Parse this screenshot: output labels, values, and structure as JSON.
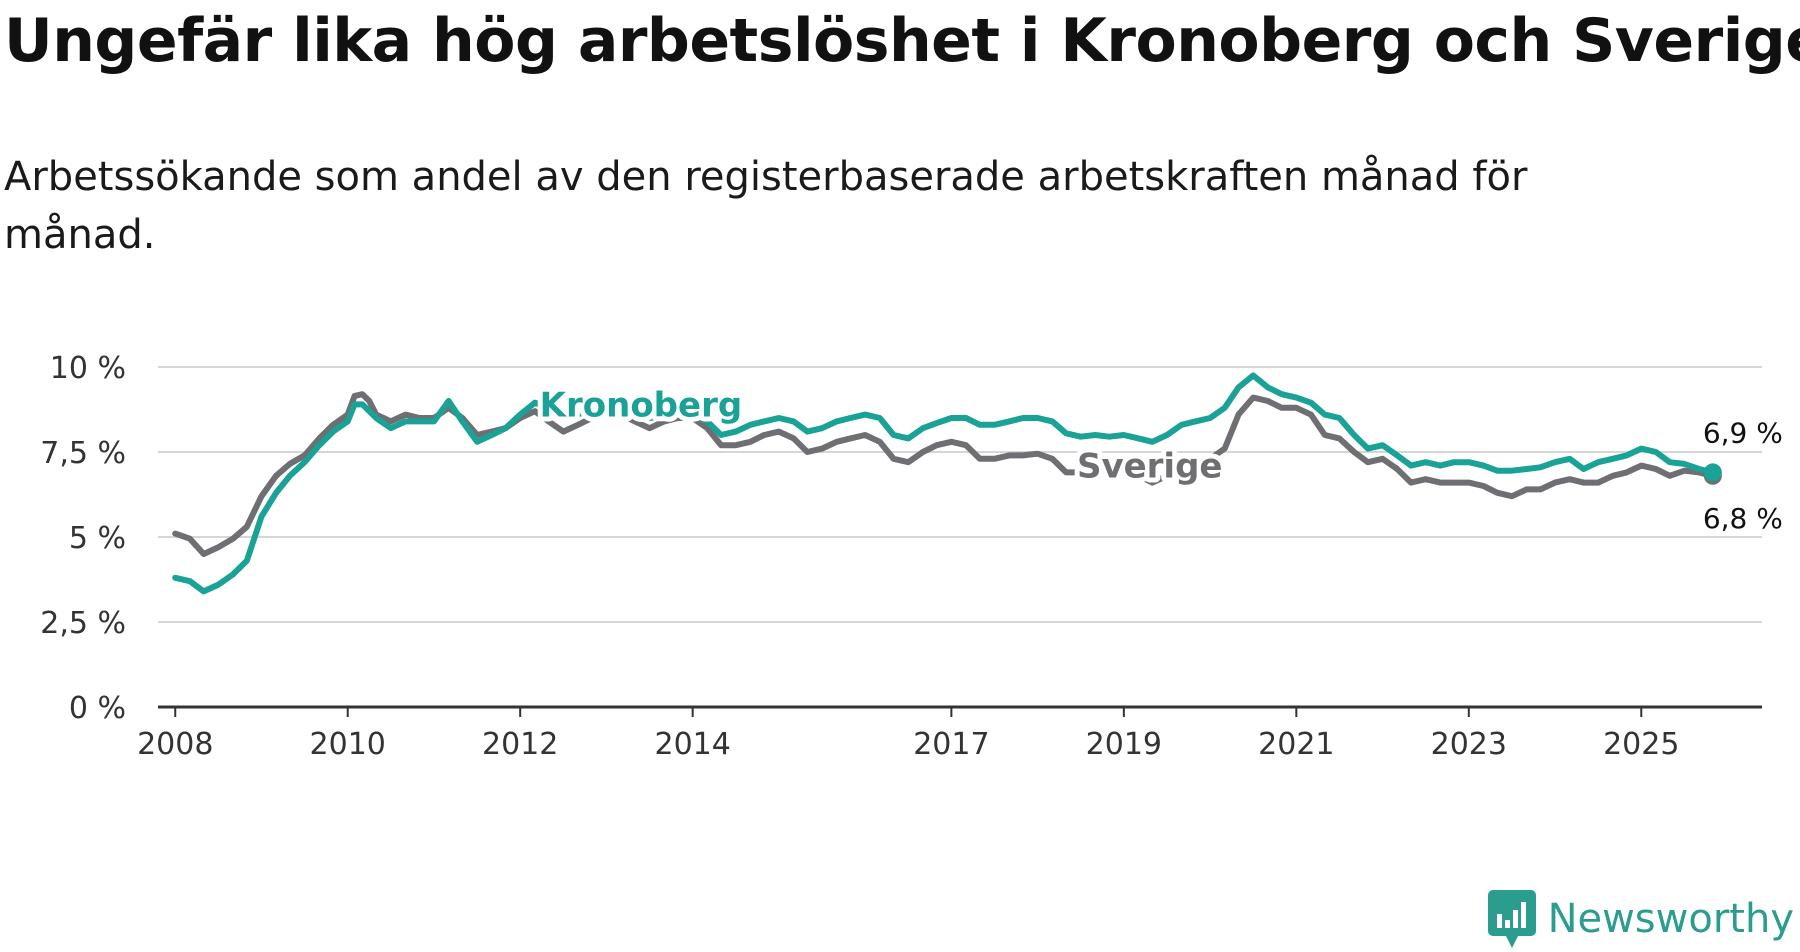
{
  "header": {
    "title": "Ungefär lika hög arbetslöshet i Kronoberg och Sverige",
    "subtitle": "Arbetssökande som andel av den registerbaserade arbetskraften månad för månad."
  },
  "brand": {
    "name": "Newsworthy",
    "icon": "newsworthy-logo-icon",
    "color": "#2a9d8f"
  },
  "chart_data": {
    "type": "line",
    "title": "Ungefär lika hög arbetslöshet i Kronoberg och Sverige",
    "subtitle": "Arbetssökande som andel av den registerbaserade arbetskraften månad för månad.",
    "xlabel": "",
    "ylabel": "",
    "xlim": [
      2007.8,
      2026.4
    ],
    "ylim": [
      0,
      10
    ],
    "grid": true,
    "yticks": [
      {
        "value": 0,
        "label": "0 %"
      },
      {
        "value": 2.5,
        "label": "2,5 %"
      },
      {
        "value": 5,
        "label": "5 %"
      },
      {
        "value": 7.5,
        "label": "7,5 %"
      },
      {
        "value": 10,
        "label": "10 %"
      }
    ],
    "xticks": [
      {
        "value": 2008,
        "label": "2008"
      },
      {
        "value": 2010,
        "label": "2010"
      },
      {
        "value": 2012,
        "label": "2012"
      },
      {
        "value": 2014,
        "label": "2014"
      },
      {
        "value": 2017,
        "label": "2017"
      },
      {
        "value": 2019,
        "label": "2019"
      },
      {
        "value": 2021,
        "label": "2021"
      },
      {
        "value": 2023,
        "label": "2023"
      },
      {
        "value": 2025,
        "label": "2025"
      }
    ],
    "series": [
      {
        "name": "Sverige",
        "color": "#6e6e73",
        "end_label": "6,8 %",
        "points": [
          [
            2008,
            5.1
          ],
          [
            2008.17,
            4.95
          ],
          [
            2008.33,
            4.5
          ],
          [
            2008.5,
            4.7
          ],
          [
            2008.67,
            4.95
          ],
          [
            2008.83,
            5.3
          ],
          [
            2009,
            6.2
          ],
          [
            2009.17,
            6.8
          ],
          [
            2009.33,
            7.15
          ],
          [
            2009.5,
            7.4
          ],
          [
            2009.67,
            7.9
          ],
          [
            2009.83,
            8.3
          ],
          [
            2010,
            8.6
          ],
          [
            2010.08,
            9.15
          ],
          [
            2010.17,
            9.2
          ],
          [
            2010.25,
            9.0
          ],
          [
            2010.33,
            8.6
          ],
          [
            2010.5,
            8.4
          ],
          [
            2010.67,
            8.6
          ],
          [
            2010.83,
            8.5
          ],
          [
            2011,
            8.5
          ],
          [
            2011.17,
            8.8
          ],
          [
            2011.33,
            8.5
          ],
          [
            2011.5,
            8.0
          ],
          [
            2011.67,
            8.1
          ],
          [
            2011.83,
            8.2
          ],
          [
            2012,
            8.5
          ],
          [
            2012.17,
            8.7
          ],
          [
            2012.33,
            8.4
          ],
          [
            2012.5,
            8.1
          ],
          [
            2012.67,
            8.3
          ],
          [
            2012.83,
            8.5
          ],
          [
            2013,
            8.6
          ],
          [
            2013.17,
            8.6
          ],
          [
            2013.33,
            8.4
          ],
          [
            2013.5,
            8.2
          ],
          [
            2013.67,
            8.4
          ],
          [
            2013.83,
            8.5
          ],
          [
            2014,
            8.5
          ],
          [
            2014.17,
            8.2
          ],
          [
            2014.33,
            7.7
          ],
          [
            2014.5,
            7.7
          ],
          [
            2014.67,
            7.8
          ],
          [
            2014.83,
            8.0
          ],
          [
            2015,
            8.1
          ],
          [
            2015.17,
            7.9
          ],
          [
            2015.33,
            7.5
          ],
          [
            2015.5,
            7.6
          ],
          [
            2015.67,
            7.8
          ],
          [
            2015.83,
            7.9
          ],
          [
            2016,
            8.0
          ],
          [
            2016.17,
            7.8
          ],
          [
            2016.33,
            7.3
          ],
          [
            2016.5,
            7.2
          ],
          [
            2016.67,
            7.5
          ],
          [
            2016.83,
            7.7
          ],
          [
            2017,
            7.8
          ],
          [
            2017.17,
            7.7
          ],
          [
            2017.33,
            7.3
          ],
          [
            2017.5,
            7.3
          ],
          [
            2017.67,
            7.4
          ],
          [
            2017.83,
            7.4
          ],
          [
            2018,
            7.45
          ],
          [
            2018.17,
            7.3
          ],
          [
            2018.33,
            6.9
          ],
          [
            2018.5,
            6.9
          ],
          [
            2018.67,
            6.9
          ],
          [
            2018.83,
            6.9
          ],
          [
            2019,
            6.95
          ],
          [
            2019.17,
            6.8
          ],
          [
            2019.33,
            6.6
          ],
          [
            2019.5,
            6.8
          ],
          [
            2019.67,
            7.0
          ],
          [
            2019.83,
            7.2
          ],
          [
            2020,
            7.3
          ],
          [
            2020.17,
            7.6
          ],
          [
            2020.33,
            8.6
          ],
          [
            2020.5,
            9.1
          ],
          [
            2020.67,
            9.0
          ],
          [
            2020.83,
            8.8
          ],
          [
            2021,
            8.8
          ],
          [
            2021.17,
            8.6
          ],
          [
            2021.33,
            8.0
          ],
          [
            2021.5,
            7.9
          ],
          [
            2021.67,
            7.5
          ],
          [
            2021.83,
            7.2
          ],
          [
            2022,
            7.3
          ],
          [
            2022.17,
            7.0
          ],
          [
            2022.33,
            6.6
          ],
          [
            2022.5,
            6.7
          ],
          [
            2022.67,
            6.6
          ],
          [
            2022.83,
            6.6
          ],
          [
            2023,
            6.6
          ],
          [
            2023.17,
            6.5
          ],
          [
            2023.33,
            6.3
          ],
          [
            2023.5,
            6.2
          ],
          [
            2023.67,
            6.4
          ],
          [
            2023.83,
            6.4
          ],
          [
            2024,
            6.6
          ],
          [
            2024.17,
            6.7
          ],
          [
            2024.33,
            6.6
          ],
          [
            2024.5,
            6.6
          ],
          [
            2024.67,
            6.8
          ],
          [
            2024.83,
            6.9
          ],
          [
            2025,
            7.1
          ],
          [
            2025.17,
            7.0
          ],
          [
            2025.33,
            6.8
          ],
          [
            2025.5,
            6.95
          ],
          [
            2025.67,
            6.9
          ],
          [
            2025.83,
            6.8
          ]
        ]
      },
      {
        "name": "Kronoberg",
        "color": "#19a295",
        "end_label": "6,9 %",
        "points": [
          [
            2008,
            3.8
          ],
          [
            2008.17,
            3.7
          ],
          [
            2008.33,
            3.4
          ],
          [
            2008.5,
            3.6
          ],
          [
            2008.67,
            3.9
          ],
          [
            2008.83,
            4.3
          ],
          [
            2009,
            5.6
          ],
          [
            2009.17,
            6.3
          ],
          [
            2009.33,
            6.8
          ],
          [
            2009.5,
            7.2
          ],
          [
            2009.67,
            7.7
          ],
          [
            2009.83,
            8.1
          ],
          [
            2010,
            8.4
          ],
          [
            2010.08,
            8.9
          ],
          [
            2010.17,
            8.9
          ],
          [
            2010.33,
            8.5
          ],
          [
            2010.5,
            8.2
          ],
          [
            2010.67,
            8.4
          ],
          [
            2010.83,
            8.4
          ],
          [
            2011,
            8.4
          ],
          [
            2011.17,
            9.0
          ],
          [
            2011.33,
            8.4
          ],
          [
            2011.5,
            7.8
          ],
          [
            2011.67,
            8.0
          ],
          [
            2011.83,
            8.2
          ],
          [
            2012,
            8.6
          ],
          [
            2012.17,
            8.95
          ],
          [
            2012.33,
            8.8
          ],
          [
            2012.5,
            8.5
          ],
          [
            2012.67,
            8.6
          ],
          [
            2012.83,
            8.8
          ],
          [
            2013,
            8.7
          ],
          [
            2013.17,
            8.8
          ],
          [
            2013.33,
            8.6
          ],
          [
            2013.5,
            8.5
          ],
          [
            2013.67,
            8.55
          ],
          [
            2013.83,
            8.6
          ],
          [
            2014,
            8.6
          ],
          [
            2014.17,
            8.4
          ],
          [
            2014.33,
            8.0
          ],
          [
            2014.5,
            8.1
          ],
          [
            2014.67,
            8.3
          ],
          [
            2014.83,
            8.4
          ],
          [
            2015,
            8.5
          ],
          [
            2015.17,
            8.4
          ],
          [
            2015.33,
            8.1
          ],
          [
            2015.5,
            8.2
          ],
          [
            2015.67,
            8.4
          ],
          [
            2015.83,
            8.5
          ],
          [
            2016,
            8.6
          ],
          [
            2016.17,
            8.5
          ],
          [
            2016.33,
            8.0
          ],
          [
            2016.5,
            7.9
          ],
          [
            2016.67,
            8.2
          ],
          [
            2016.83,
            8.35
          ],
          [
            2017,
            8.5
          ],
          [
            2017.17,
            8.5
          ],
          [
            2017.33,
            8.3
          ],
          [
            2017.5,
            8.3
          ],
          [
            2017.67,
            8.4
          ],
          [
            2017.83,
            8.5
          ],
          [
            2018,
            8.5
          ],
          [
            2018.17,
            8.4
          ],
          [
            2018.33,
            8.05
          ],
          [
            2018.5,
            7.95
          ],
          [
            2018.67,
            8.0
          ],
          [
            2018.83,
            7.95
          ],
          [
            2019,
            8.0
          ],
          [
            2019.17,
            7.9
          ],
          [
            2019.33,
            7.8
          ],
          [
            2019.5,
            8.0
          ],
          [
            2019.67,
            8.3
          ],
          [
            2019.83,
            8.4
          ],
          [
            2020,
            8.5
          ],
          [
            2020.17,
            8.8
          ],
          [
            2020.33,
            9.4
          ],
          [
            2020.5,
            9.75
          ],
          [
            2020.67,
            9.4
          ],
          [
            2020.83,
            9.2
          ],
          [
            2021,
            9.1
          ],
          [
            2021.17,
            8.95
          ],
          [
            2021.33,
            8.6
          ],
          [
            2021.5,
            8.5
          ],
          [
            2021.67,
            8.0
          ],
          [
            2021.83,
            7.6
          ],
          [
            2022,
            7.7
          ],
          [
            2022.17,
            7.4
          ],
          [
            2022.33,
            7.1
          ],
          [
            2022.5,
            7.2
          ],
          [
            2022.67,
            7.1
          ],
          [
            2022.83,
            7.2
          ],
          [
            2023,
            7.2
          ],
          [
            2023.17,
            7.1
          ],
          [
            2023.33,
            6.95
          ],
          [
            2023.5,
            6.95
          ],
          [
            2023.67,
            7.0
          ],
          [
            2023.83,
            7.05
          ],
          [
            2024,
            7.2
          ],
          [
            2024.17,
            7.3
          ],
          [
            2024.33,
            7.0
          ],
          [
            2024.5,
            7.2
          ],
          [
            2024.67,
            7.3
          ],
          [
            2024.83,
            7.4
          ],
          [
            2025,
            7.6
          ],
          [
            2025.17,
            7.5
          ],
          [
            2025.33,
            7.2
          ],
          [
            2025.5,
            7.15
          ],
          [
            2025.67,
            7.0
          ],
          [
            2025.83,
            6.9
          ]
        ]
      }
    ],
    "annotations": [
      {
        "text": "Kronoberg",
        "series": "Kronoberg",
        "x": 2013.4,
        "y": 8.9
      },
      {
        "text": "Sverige",
        "series": "Sverige",
        "x": 2019.3,
        "y": 7.1
      }
    ]
  }
}
